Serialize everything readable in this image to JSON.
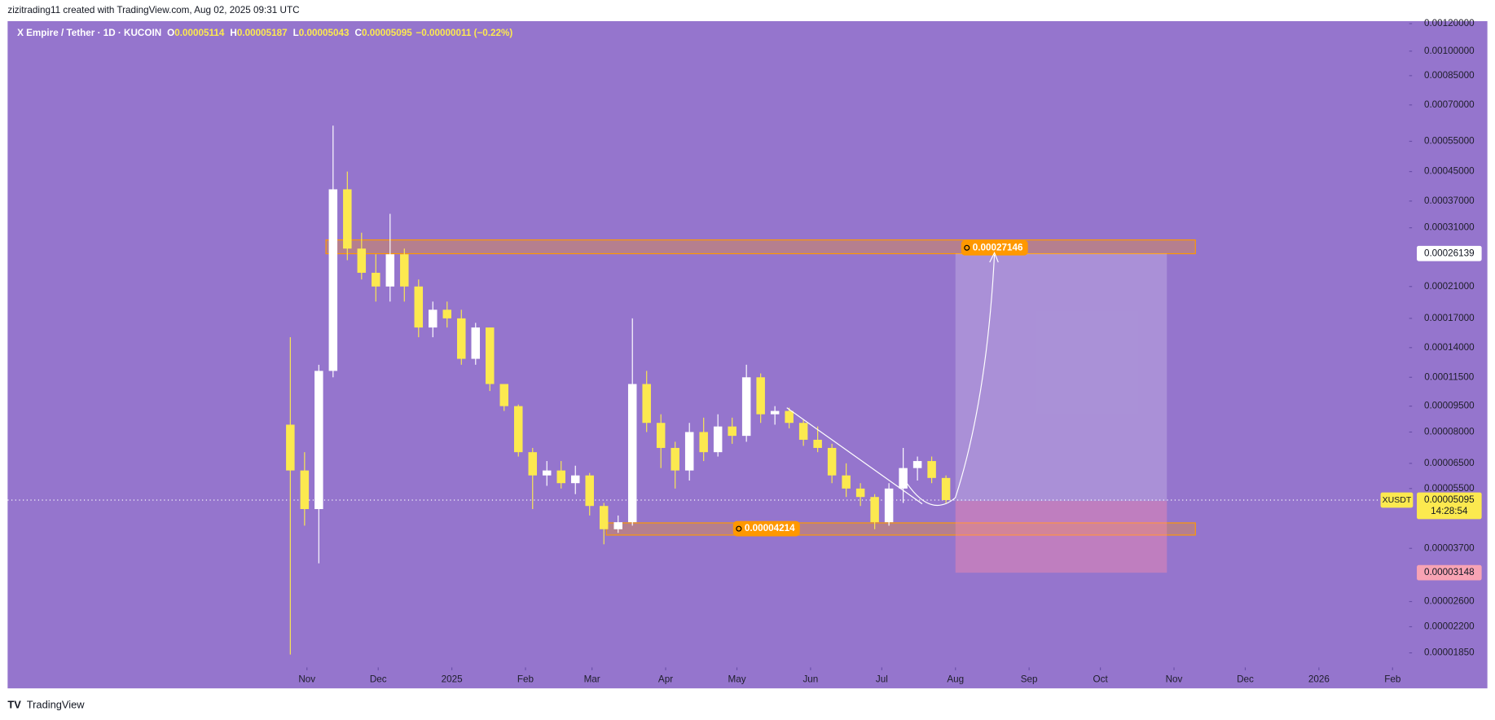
{
  "header": {
    "credit": "zizitrading11 created with TradingView.com, Aug 02, 2025 09:31 UTC"
  },
  "legend": {
    "symbol": "X Empire / Tether · 1D · KUCOIN",
    "fields": [
      {
        "key": "O",
        "value": "0.00005114"
      },
      {
        "key": "H",
        "value": "0.00005187"
      },
      {
        "key": "L",
        "value": "0.00005043"
      },
      {
        "key": "C",
        "value": "0.00005095"
      }
    ],
    "change": "−0.00000011 (−0.22%)"
  },
  "footer": {
    "brand": "TradingView"
  },
  "chart_data": {
    "type": "candlestick",
    "log_scale": true,
    "up_color": "#ffffff",
    "down_color": "#fce94f",
    "xlim": [
      0,
      590
    ],
    "ylim": [
      1.68e-05,
      0.00122
    ],
    "xticks": [
      {
        "value": 126,
        "label": "Nov"
      },
      {
        "value": 156,
        "label": "Dec"
      },
      {
        "value": 187,
        "label": "2025"
      },
      {
        "value": 218,
        "label": "Feb"
      },
      {
        "value": 246,
        "label": "Mar"
      },
      {
        "value": 277,
        "label": "Apr"
      },
      {
        "value": 307,
        "label": "May"
      },
      {
        "value": 338,
        "label": "Jun"
      },
      {
        "value": 368,
        "label": "Jul"
      },
      {
        "value": 399,
        "label": "Aug"
      },
      {
        "value": 430,
        "label": "Sep"
      },
      {
        "value": 460,
        "label": "Oct"
      },
      {
        "value": 491,
        "label": "Nov"
      },
      {
        "value": 521,
        "label": "Dec"
      },
      {
        "value": 552,
        "label": "2026"
      },
      {
        "value": 583,
        "label": "Feb"
      }
    ],
    "yticks": [
      {
        "value": 0.0012,
        "label": "0.00120000"
      },
      {
        "value": 0.001,
        "label": "0.00100000"
      },
      {
        "value": 0.00085,
        "label": "0.00085000"
      },
      {
        "value": 0.0007,
        "label": "0.00070000"
      },
      {
        "value": 0.00055,
        "label": "0.00055000"
      },
      {
        "value": 0.00045,
        "label": "0.00045000"
      },
      {
        "value": 0.00037,
        "label": "0.00037000"
      },
      {
        "value": 0.00031,
        "label": "0.00031000"
      },
      {
        "value": 0.00021,
        "label": "0.00021000"
      },
      {
        "value": 0.00017,
        "label": "0.00017000"
      },
      {
        "value": 0.00014,
        "label": "0.00014000"
      },
      {
        "value": 0.000115,
        "label": "0.00011500"
      },
      {
        "value": 9.5e-05,
        "label": "0.00009500"
      },
      {
        "value": 8e-05,
        "label": "0.00008000"
      },
      {
        "value": 6.5e-05,
        "label": "0.00006500"
      },
      {
        "value": 5.5e-05,
        "label": "0.00005500"
      },
      {
        "value": 3.7e-05,
        "label": "0.00003700"
      },
      {
        "value": 2.6e-05,
        "label": "0.00002600"
      },
      {
        "value": 2.2e-05,
        "label": "0.00002200"
      },
      {
        "value": 1.85e-05,
        "label": "0.00001850"
      }
    ],
    "x": [
      119,
      125,
      131,
      137,
      143,
      149,
      155,
      161,
      167,
      173,
      179,
      185,
      191,
      197,
      203,
      209,
      215,
      221,
      227,
      233,
      239,
      245,
      251,
      257,
      263,
      269,
      275,
      281,
      287,
      293,
      299,
      305,
      311,
      317,
      323,
      329,
      335,
      341,
      347,
      353,
      359,
      365,
      371,
      377,
      383,
      389,
      395
    ],
    "open": [
      8.4e-05,
      6.2e-05,
      4.8e-05,
      0.00012,
      0.0004,
      0.00027,
      0.00023,
      0.00021,
      0.00026,
      0.00021,
      0.00016,
      0.00018,
      0.00017,
      0.00013,
      0.00016,
      0.00011,
      9.5e-05,
      7e-05,
      6e-05,
      6.2e-05,
      5.7e-05,
      6e-05,
      4.9e-05,
      4.2e-05,
      4.4e-05,
      0.00011,
      8.5e-05,
      7.2e-05,
      6.2e-05,
      8e-05,
      7e-05,
      8.3e-05,
      7.8e-05,
      0.000115,
      9e-05,
      9.2e-05,
      8.5e-05,
      7.6e-05,
      7.2e-05,
      6e-05,
      5.5e-05,
      5.2e-05,
      4.4e-05,
      5.5e-05,
      6.3e-05,
      6.6e-05,
      5.9e-05
    ],
    "high": [
      0.00015,
      7e-05,
      0.000125,
      0.00061,
      0.00045,
      0.0003,
      0.00026,
      0.00034,
      0.00027,
      0.00022,
      0.00019,
      0.00019,
      0.00018,
      0.000165,
      0.00016,
      0.00011,
      9.6e-05,
      7.2e-05,
      6.6e-05,
      6.6e-05,
      6.4e-05,
      6.1e-05,
      5e-05,
      4.6e-05,
      0.00017,
      0.00012,
      9e-05,
      7.5e-05,
      8.5e-05,
      8.8e-05,
      9e-05,
      8.8e-05,
      0.000125,
      0.000118,
      9.5e-05,
      9.4e-05,
      8.7e-05,
      8.3e-05,
      7.4e-05,
      6.5e-05,
      5.7e-05,
      5.3e-05,
      5.7e-05,
      7.2e-05,
      6.8e-05,
      6.8e-05,
      6e-05
    ],
    "low": [
      1.83e-05,
      4.3e-05,
      3.35e-05,
      0.000115,
      0.00025,
      0.00022,
      0.00019,
      0.00019,
      0.00019,
      0.00015,
      0.00015,
      0.00016,
      0.000125,
      0.000125,
      0.000105,
      9.2e-05,
      6.8e-05,
      4.8e-05,
      5.6e-05,
      5.5e-05,
      5.3e-05,
      4.6e-05,
      3.8e-05,
      4.1e-05,
      4.3e-05,
      8e-05,
      6.3e-05,
      5.5e-05,
      5.8e-05,
      6.6e-05,
      6.8e-05,
      7.4e-05,
      7.5e-05,
      8.5e-05,
      8.4e-05,
      8.2e-05,
      7.3e-05,
      7e-05,
      5.7e-05,
      5.2e-05,
      4.9e-05,
      4.2e-05,
      4.3e-05,
      5e-05,
      5.8e-05,
      5.7e-05,
      5e-05
    ],
    "close": [
      6.2e-05,
      4.8e-05,
      0.00012,
      0.0004,
      0.00027,
      0.00023,
      0.00021,
      0.00026,
      0.00021,
      0.00016,
      0.00018,
      0.00017,
      0.00013,
      0.00016,
      0.00011,
      9.5e-05,
      7e-05,
      6e-05,
      6.2e-05,
      5.7e-05,
      6e-05,
      4.9e-05,
      4.2e-05,
      4.4e-05,
      0.00011,
      8.5e-05,
      7.2e-05,
      6.2e-05,
      8e-05,
      7e-05,
      8.3e-05,
      7.8e-05,
      0.000115,
      9e-05,
      9.2e-05,
      8.5e-05,
      7.6e-05,
      7.2e-05,
      6e-05,
      5.5e-05,
      5.2e-05,
      4.4e-05,
      5.5e-05,
      6.3e-05,
      6.6e-05,
      5.9e-05,
      5.095e-05
    ],
    "last_price": {
      "symbol": "XUSDT",
      "value": 5.095e-05,
      "countdown": "14:28:54"
    },
    "zones": [
      {
        "x": [
          134,
          500
        ],
        "y": [
          0.000261,
          0.000286
        ],
        "label_x": 403,
        "label": 0.00027146
      },
      {
        "x": [
          252,
          500
        ],
        "y": [
          4.04e-05,
          4.38e-05
        ],
        "label_x": 307,
        "label": 4.214e-05
      }
    ],
    "trendline": {
      "x": [
        328,
        385
      ],
      "y": [
        9.4e-05,
        4.97e-05
      ]
    },
    "position": {
      "x": [
        399,
        488
      ],
      "entry": 5.064e-05,
      "target": 0.00026139,
      "stop": 3.148e-05
    }
  }
}
